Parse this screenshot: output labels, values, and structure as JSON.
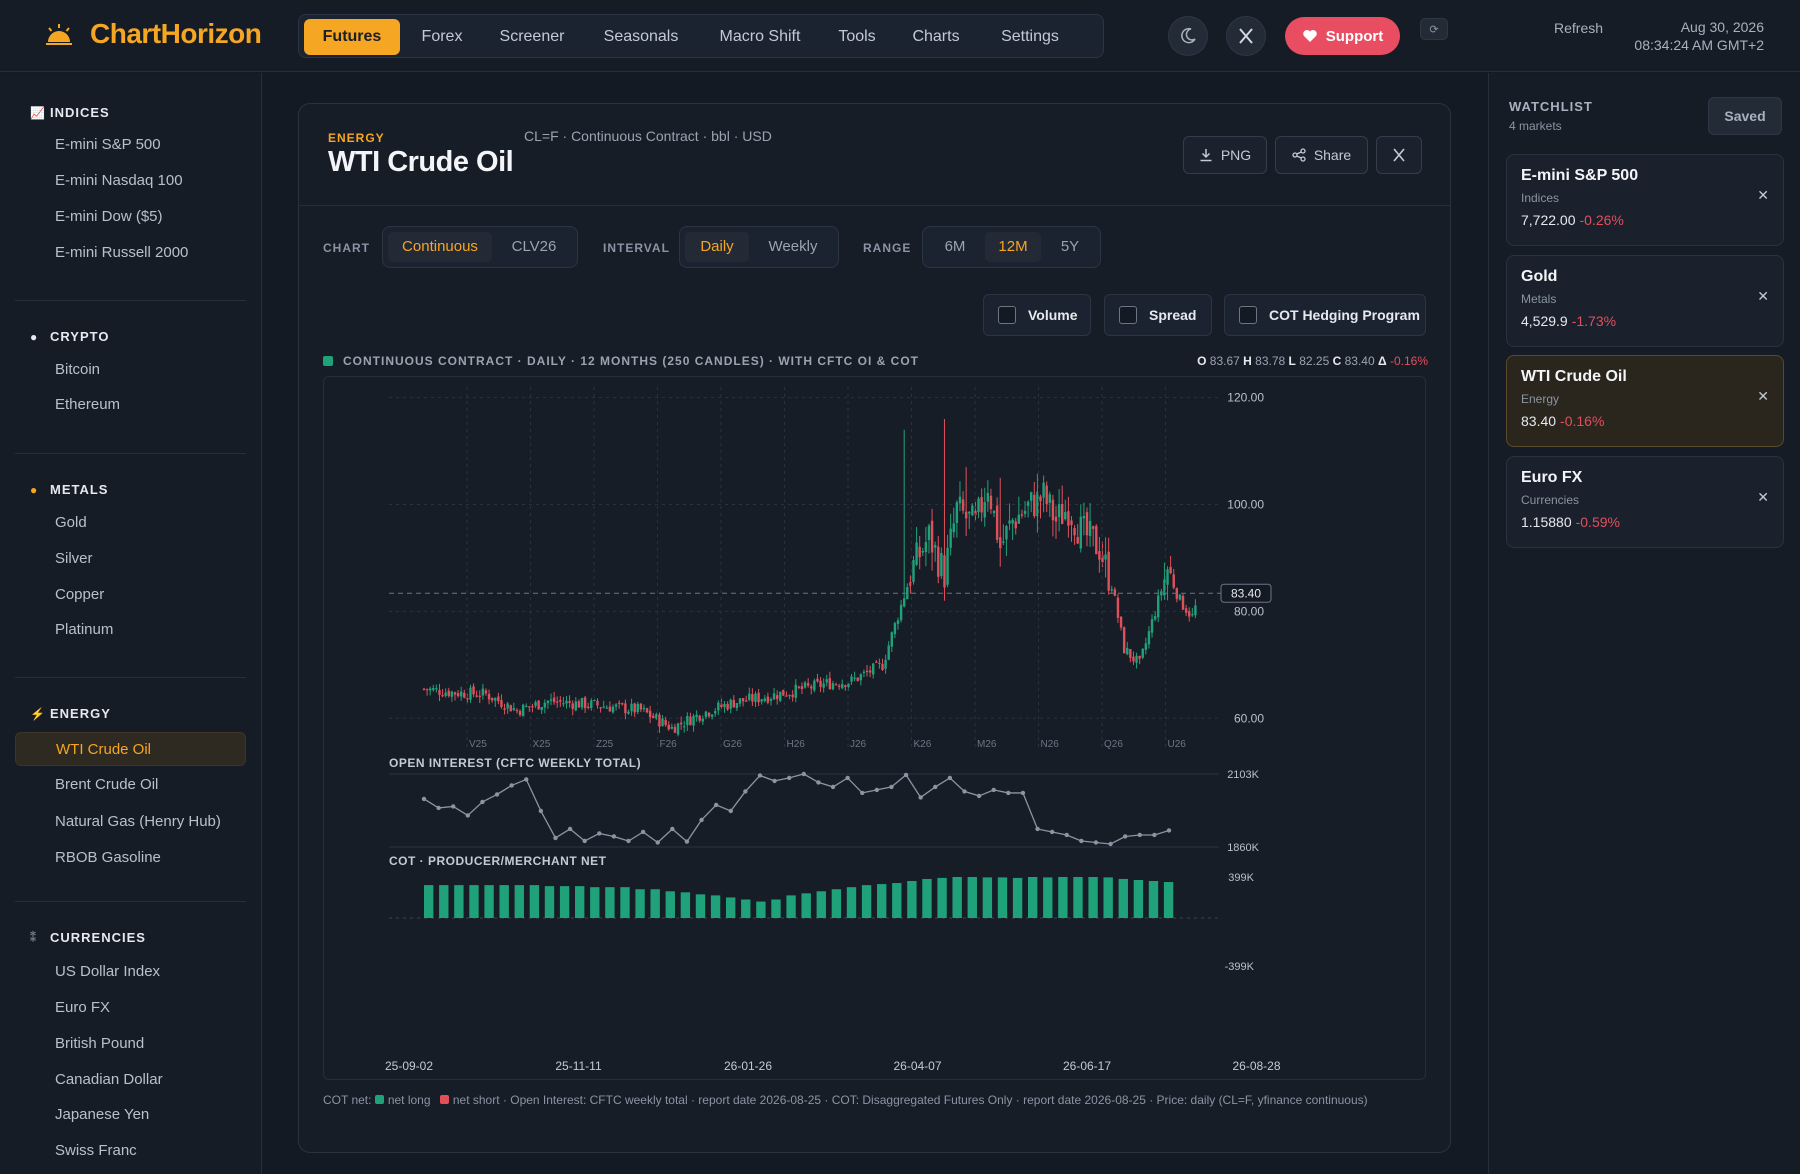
{
  "header": {
    "logo": "ChartHorizon",
    "nav": [
      "Futures",
      "Forex",
      "Screener",
      "Seasonals",
      "Macro Shift",
      "Tools",
      "Charts",
      "Settings"
    ],
    "active_nav": "Futures",
    "support_label": "Support",
    "refresh_label": "Refresh",
    "date": "Aug 30, 2026",
    "time": "08:34:24 AM GMT+2",
    "icons": [
      "moon-icon",
      "x-logo-icon",
      "heart-icon",
      "refresh-icon"
    ]
  },
  "sidebar": {
    "categories": [
      {
        "name": "INDICES",
        "icon": "chart-icon",
        "items": [
          "E-mini S&P 500",
          "E-mini Nasdaq 100",
          "E-mini Dow ($5)",
          "E-mini Russell 2000"
        ]
      },
      {
        "name": "CRYPTO",
        "icon": "coin-icon",
        "items": [
          "Bitcoin",
          "Ethereum"
        ]
      },
      {
        "name": "METALS",
        "icon": "medal-icon",
        "items": [
          "Gold",
          "Silver",
          "Copper",
          "Platinum"
        ]
      },
      {
        "name": "ENERGY",
        "icon": "lightning-icon",
        "items": [
          "WTI Crude Oil",
          "Brent Crude Oil",
          "Natural Gas (Henry Hub)",
          "RBOB Gasoline"
        ]
      },
      {
        "name": "CURRENCIES",
        "icon": "currency-icon",
        "items": [
          "US Dollar Index",
          "Euro FX",
          "British Pound",
          "Canadian Dollar",
          "Japanese Yen",
          "Swiss Franc"
        ]
      }
    ],
    "active_item": "WTI Crude Oil"
  },
  "instrument": {
    "category": "ENERGY",
    "title": "WTI Crude Oil",
    "meta": "CL=F · Continuous Contract · bbl · USD",
    "buttons": {
      "png": "PNG",
      "share": "Share"
    }
  },
  "controls": {
    "chart_label": "CHART",
    "chart_options": [
      "Continuous",
      "CLV26"
    ],
    "chart_active": "Continuous",
    "interval_label": "INTERVAL",
    "interval_options": [
      "Daily",
      "Weekly"
    ],
    "interval_active": "Daily",
    "range_label": "RANGE",
    "range_options": [
      "6M",
      "12M",
      "5Y"
    ],
    "range_active": "12M",
    "toggles": [
      "Volume",
      "Spread",
      "COT Hedging Program"
    ]
  },
  "chart_header": {
    "title": "CONTINUOUS CONTRACT · DAILY · 12 MONTHS (250 CANDLES) · WITH CFTC OI & COT",
    "ohlc": {
      "o": "83.67",
      "h": "83.78",
      "l": "82.25",
      "c": "83.40",
      "change": "-0.16%"
    }
  },
  "chart_data": [
    {
      "type": "candlestick",
      "title": "",
      "price_ticks": [
        "120.00",
        "100.00",
        "80.00",
        "60.00"
      ],
      "ylim": [
        55,
        122
      ],
      "last_price_label": "83.40",
      "last_price": 83.4,
      "contract_labels": [
        "V25",
        "X25",
        "Z25",
        "F26",
        "G26",
        "H26",
        "J26",
        "K26",
        "M26",
        "N26",
        "Q26",
        "U26"
      ],
      "close_anchors": [
        [
          0,
          65.5
        ],
        [
          10,
          64.8
        ],
        [
          20,
          64.5
        ],
        [
          30,
          61.5
        ],
        [
          40,
          63.2
        ],
        [
          55,
          62.5
        ],
        [
          70,
          61.5
        ],
        [
          80,
          58.2
        ],
        [
          90,
          61.0
        ],
        [
          100,
          63.0
        ],
        [
          110,
          64.0
        ],
        [
          120,
          65.2
        ],
        [
          130,
          66.5
        ],
        [
          138,
          67.0
        ],
        [
          148,
          70.0
        ],
        [
          158,
          88.5
        ],
        [
          163,
          94.0
        ],
        [
          168,
          87.0
        ],
        [
          172,
          99.0
        ],
        [
          178,
          96.0
        ],
        [
          182,
          104.0
        ],
        [
          186,
          92.0
        ],
        [
          190,
          97.0
        ],
        [
          196,
          100.0
        ],
        [
          200,
          101.5
        ],
        [
          204,
          97.0
        ],
        [
          208,
          99.5
        ],
        [
          212,
          95.0
        ],
        [
          218,
          92.0
        ],
        [
          222,
          85.0
        ],
        [
          226,
          73.0
        ],
        [
          231,
          70.0
        ],
        [
          236,
          80.0
        ],
        [
          240,
          88.0
        ],
        [
          244,
          82.0
        ],
        [
          248,
          79.0
        ],
        [
          252,
          86.0
        ],
        [
          255,
          83.4
        ]
      ],
      "spikes": [
        [
          155,
          114
        ],
        [
          168,
          116
        ],
        [
          175,
          107
        ],
        [
          180,
          103
        ],
        [
          186,
          105
        ]
      ],
      "n_candles": 250
    },
    {
      "type": "line",
      "title": "OPEN INTEREST (CFTC WEEKLY TOTAL)",
      "y_ticks": [
        "2103K",
        "1860K"
      ],
      "ylim": [
        1860,
        2103
      ],
      "values": [
        2020,
        1990,
        1995,
        1965,
        2010,
        2035,
        2065,
        2085,
        1980,
        1890,
        1920,
        1880,
        1905,
        1895,
        1880,
        1910,
        1875,
        1920,
        1878,
        1950,
        2000,
        1980,
        2045,
        2098,
        2080,
        2090,
        2103,
        2075,
        2060,
        2090,
        2040,
        2050,
        2060,
        2100,
        2025,
        2060,
        2090,
        2045,
        2030,
        2050,
        2040,
        2040,
        1920,
        1910,
        1900,
        1880,
        1875,
        1870,
        1895,
        1900,
        1900,
        1915
      ]
    },
    {
      "type": "bar",
      "title": "COT · PRODUCER/MERCHANT NET",
      "y_ticks": [
        "399K",
        "-399K"
      ],
      "ylim": [
        -399,
        399
      ],
      "values": [
        320,
        320,
        320,
        320,
        320,
        320,
        320,
        320,
        310,
        310,
        310,
        300,
        300,
        300,
        280,
        280,
        260,
        250,
        230,
        220,
        200,
        180,
        160,
        180,
        220,
        240,
        260,
        280,
        300,
        320,
        330,
        340,
        360,
        380,
        390,
        399,
        399,
        395,
        395,
        390,
        399,
        395,
        399,
        399,
        399,
        395,
        380,
        370,
        360,
        350
      ],
      "date_labels": [
        "25-09-02",
        "25-11-11",
        "26-01-26",
        "26-04-07",
        "26-06-17",
        "26-08-28"
      ]
    }
  ],
  "footnote": {
    "prefix": "COT net:",
    "long": "net long",
    "short": "net short",
    "text": "· Open Interest: CFTC weekly total · report date 2026-08-25 · COT: Disaggregated Futures Only · report date 2026-08-25 · Price: daily (CL=F, yfinance continuous)"
  },
  "watchlist": {
    "title": "WATCHLIST",
    "count": "4 markets",
    "saved_label": "Saved",
    "items": [
      {
        "name": "E-mini S&P 500",
        "category": "Indices",
        "value": "7,722.00",
        "change": "-0.26%"
      },
      {
        "name": "Gold",
        "category": "Metals",
        "value": "4,529.9",
        "change": "-1.73%"
      },
      {
        "name": "WTI Crude Oil",
        "category": "Energy",
        "value": "83.40",
        "change": "-0.16%"
      },
      {
        "name": "Euro FX",
        "category": "Currencies",
        "value": "1.15880",
        "change": "-0.59%"
      }
    ],
    "active": "WTI Crude Oil"
  },
  "colors": {
    "accent": "#f5a623",
    "up": "#1fa27a",
    "down": "#e0505b",
    "support": "#e94d61"
  }
}
